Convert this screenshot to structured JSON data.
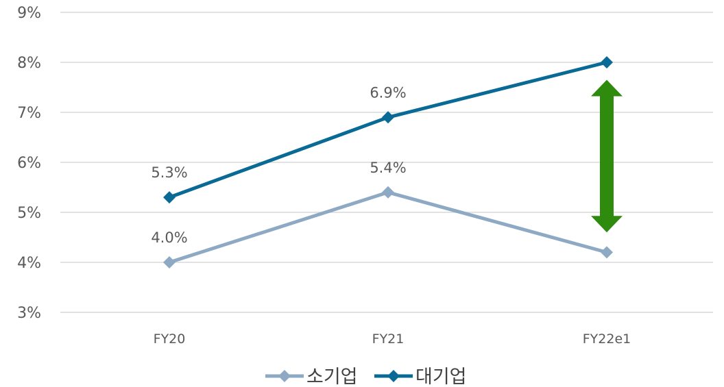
{
  "chart_data": {
    "type": "line",
    "categories": [
      "FY20",
      "FY21",
      "FY22e1"
    ],
    "series": [
      {
        "name": "소기업",
        "values": [
          4.0,
          5.4,
          4.2
        ],
        "data_labels": [
          "4.0%",
          "5.4%",
          null
        ],
        "color": "#8DA9C4"
      },
      {
        "name": "대기업",
        "values": [
          5.3,
          6.9,
          8.0
        ],
        "data_labels": [
          "5.3%",
          "6.9%",
          null
        ],
        "color": "#0A6A96"
      }
    ],
    "y_ticks": [
      "3%",
      "4%",
      "5%",
      "6%",
      "7%",
      "8%",
      "9%"
    ],
    "ylim": [
      3,
      9
    ],
    "grid": "horizontal",
    "legend": "bottom-center",
    "annotation": {
      "type": "double-arrow",
      "category": "FY22e1",
      "y_range": [
        4.6,
        7.65
      ],
      "color": "#2E8B0E"
    }
  }
}
